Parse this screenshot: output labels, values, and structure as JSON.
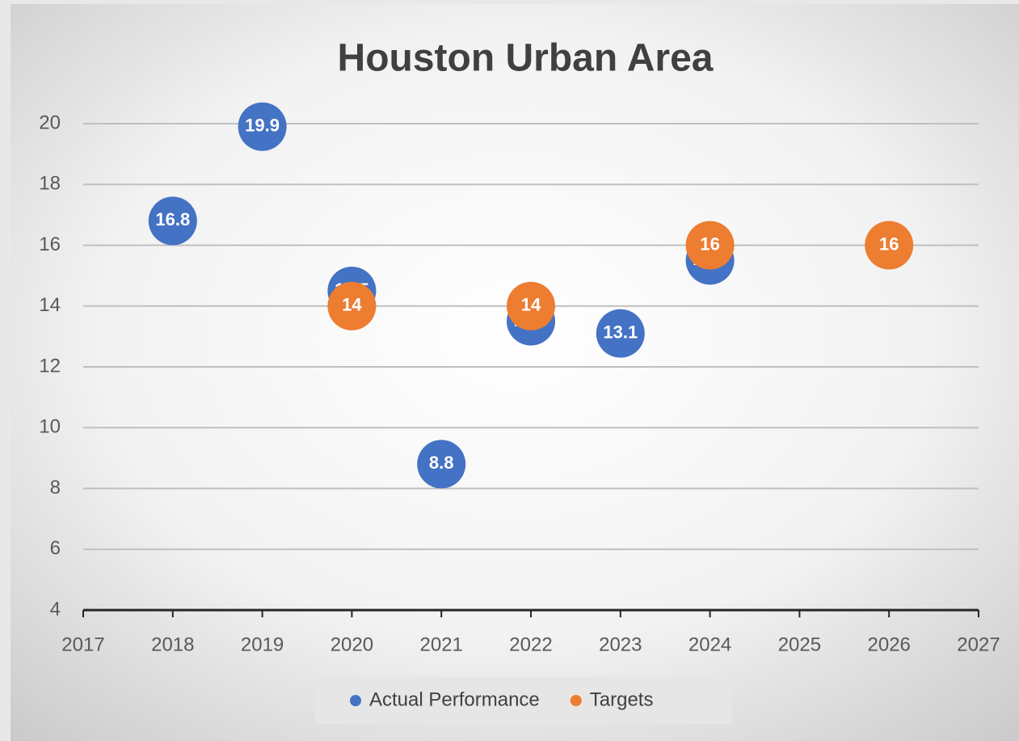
{
  "chart_data": {
    "type": "scatter",
    "title": "Houston Urban Area",
    "series": [
      {
        "name": "Actual Performance",
        "color": "#4472c4",
        "x": [
          2018,
          2019,
          2020,
          2021,
          2022,
          2023,
          2024
        ],
        "values": [
          16.8,
          19.9,
          14.5,
          8.8,
          13.5,
          13.1,
          15.5
        ]
      },
      {
        "name": "Targets",
        "color": "#ed7d31",
        "x": [
          2020,
          2022,
          2024,
          2026
        ],
        "values": [
          14,
          14,
          16,
          16
        ]
      }
    ],
    "xlim": [
      2017,
      2027
    ],
    "xticks": [
      2017,
      2018,
      2019,
      2020,
      2021,
      2022,
      2023,
      2024,
      2025,
      2026,
      2027
    ],
    "ylim": [
      4,
      20
    ],
    "yticks": [
      4,
      6,
      8,
      10,
      12,
      14,
      16,
      18,
      20
    ],
    "grid": true,
    "legend": "bottom"
  }
}
